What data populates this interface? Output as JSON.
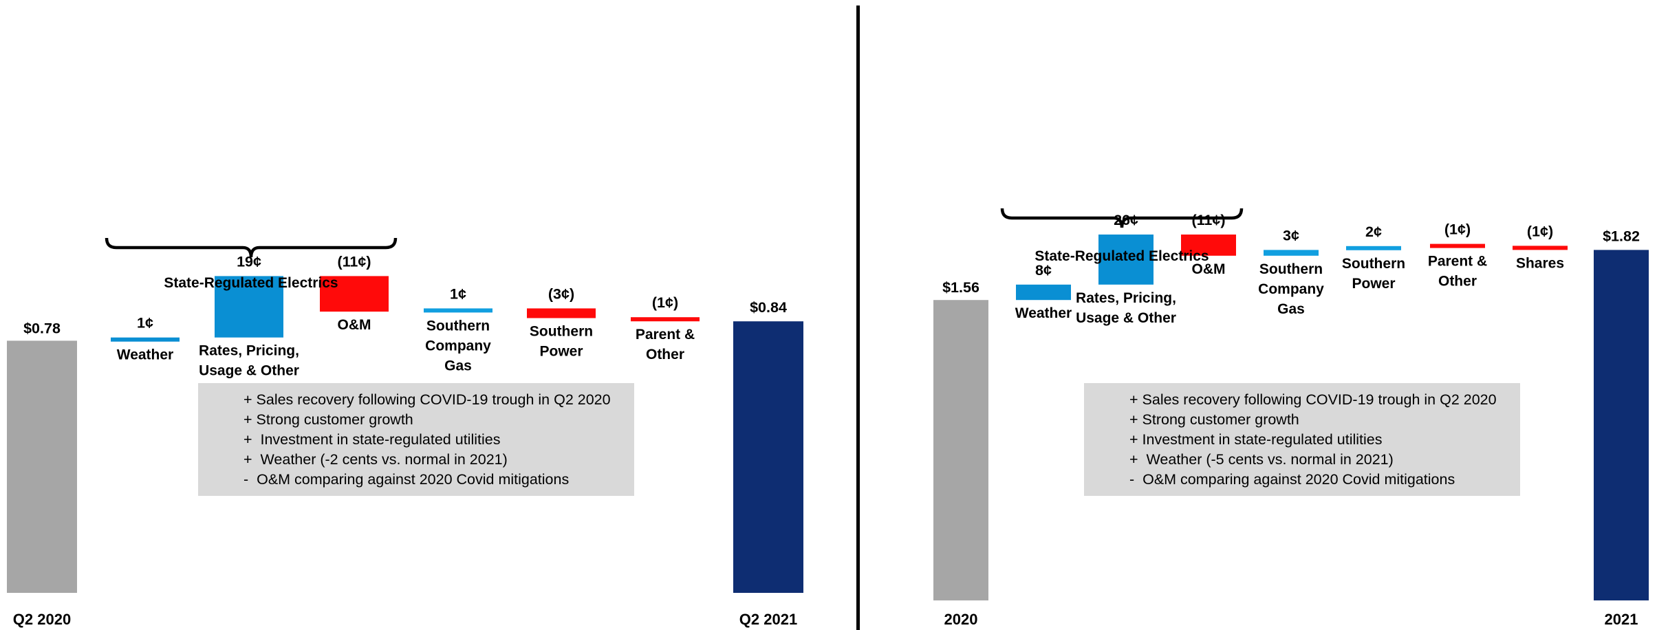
{
  "colors": {
    "start_bar": "#a6a6a6",
    "end_bar": "#0e2d72",
    "increase_rse": "#0a8fd3",
    "increase_other": "#119fe0",
    "decrease": "#ff0a0a",
    "note_bg": "#d9d9d9"
  },
  "chart_data": [
    {
      "type": "waterfall",
      "unit": "cents per share",
      "categories": [
        "Q2 2020",
        "Weather",
        "Rates, Pricing, Usage & Other",
        "O&M",
        "Southern Company Gas",
        "Southern Power",
        "Parent & Other",
        "Q2 2021"
      ],
      "start": {
        "label": "Q2 2020",
        "value": 0.78,
        "value_label": "$0.78"
      },
      "steps": [
        {
          "name": "Weather",
          "value": 1,
          "value_label": "1¢",
          "group": "State-Regulated Electrics"
        },
        {
          "name": "Rates, Pricing, Usage & Other",
          "value": 19,
          "value_label": "19¢",
          "group": "State-Regulated Electrics"
        },
        {
          "name": "O&M",
          "value": -11,
          "value_label": "(11¢)",
          "group": "State-Regulated Electrics"
        },
        {
          "name": "Southern Company Gas",
          "value": 1,
          "value_label": "1¢"
        },
        {
          "name": "Southern Power",
          "value": -3,
          "value_label": "(3¢)"
        },
        {
          "name": "Parent & Other",
          "value": -1,
          "value_label": "(1¢)"
        }
      ],
      "end": {
        "label": "Q2 2021",
        "value": 0.84,
        "value_label": "$0.84"
      },
      "group_label": "State-Regulated Electrics",
      "notes": [
        "+ Sales recovery following COVID-19 trough in Q2 2020",
        "+ Strong customer growth",
        "+  Investment in state-regulated utilities",
        "+  Weather (-2 cents vs. normal in 2021)",
        "-  O&M comparing against 2020 Covid mitigations"
      ]
    },
    {
      "type": "waterfall",
      "unit": "cents per share",
      "categories": [
        "2020",
        "Weather",
        "Rates, Pricing, Usage & Other",
        "O&M",
        "Southern Company Gas",
        "Southern Power",
        "Parent & Other",
        "Shares",
        "2021"
      ],
      "start": {
        "label": "2020",
        "value": 1.56,
        "value_label": "$1.56"
      },
      "steps": [
        {
          "name": "Weather",
          "value": 8,
          "value_label": "8¢",
          "group": "State-Regulated Electrics"
        },
        {
          "name": "Rates, Pricing, Usage & Other",
          "value": 26,
          "value_label": "26¢",
          "group": "State-Regulated Electrics"
        },
        {
          "name": "O&M",
          "value": -11,
          "value_label": "(11¢)",
          "group": "State-Regulated Electrics"
        },
        {
          "name": "Southern Company Gas",
          "value": 3,
          "value_label": "3¢"
        },
        {
          "name": "Southern Power",
          "value": 2,
          "value_label": "2¢"
        },
        {
          "name": "Parent & Other",
          "value": -1,
          "value_label": "(1¢)"
        },
        {
          "name": "Shares",
          "value": -1,
          "value_label": "(1¢)"
        }
      ],
      "end": {
        "label": "2021",
        "value": 1.82,
        "value_label": "$1.82"
      },
      "group_label": "State-Regulated Electrics",
      "notes": [
        "+ Sales recovery following COVID-19 trough in Q2 2020",
        "+ Strong customer growth",
        "+ Investment in state-regulated utilities",
        "+  Weather (-5 cents vs. normal in 2021)",
        "-  O&M comparing against 2020 Covid mitigations"
      ]
    }
  ]
}
